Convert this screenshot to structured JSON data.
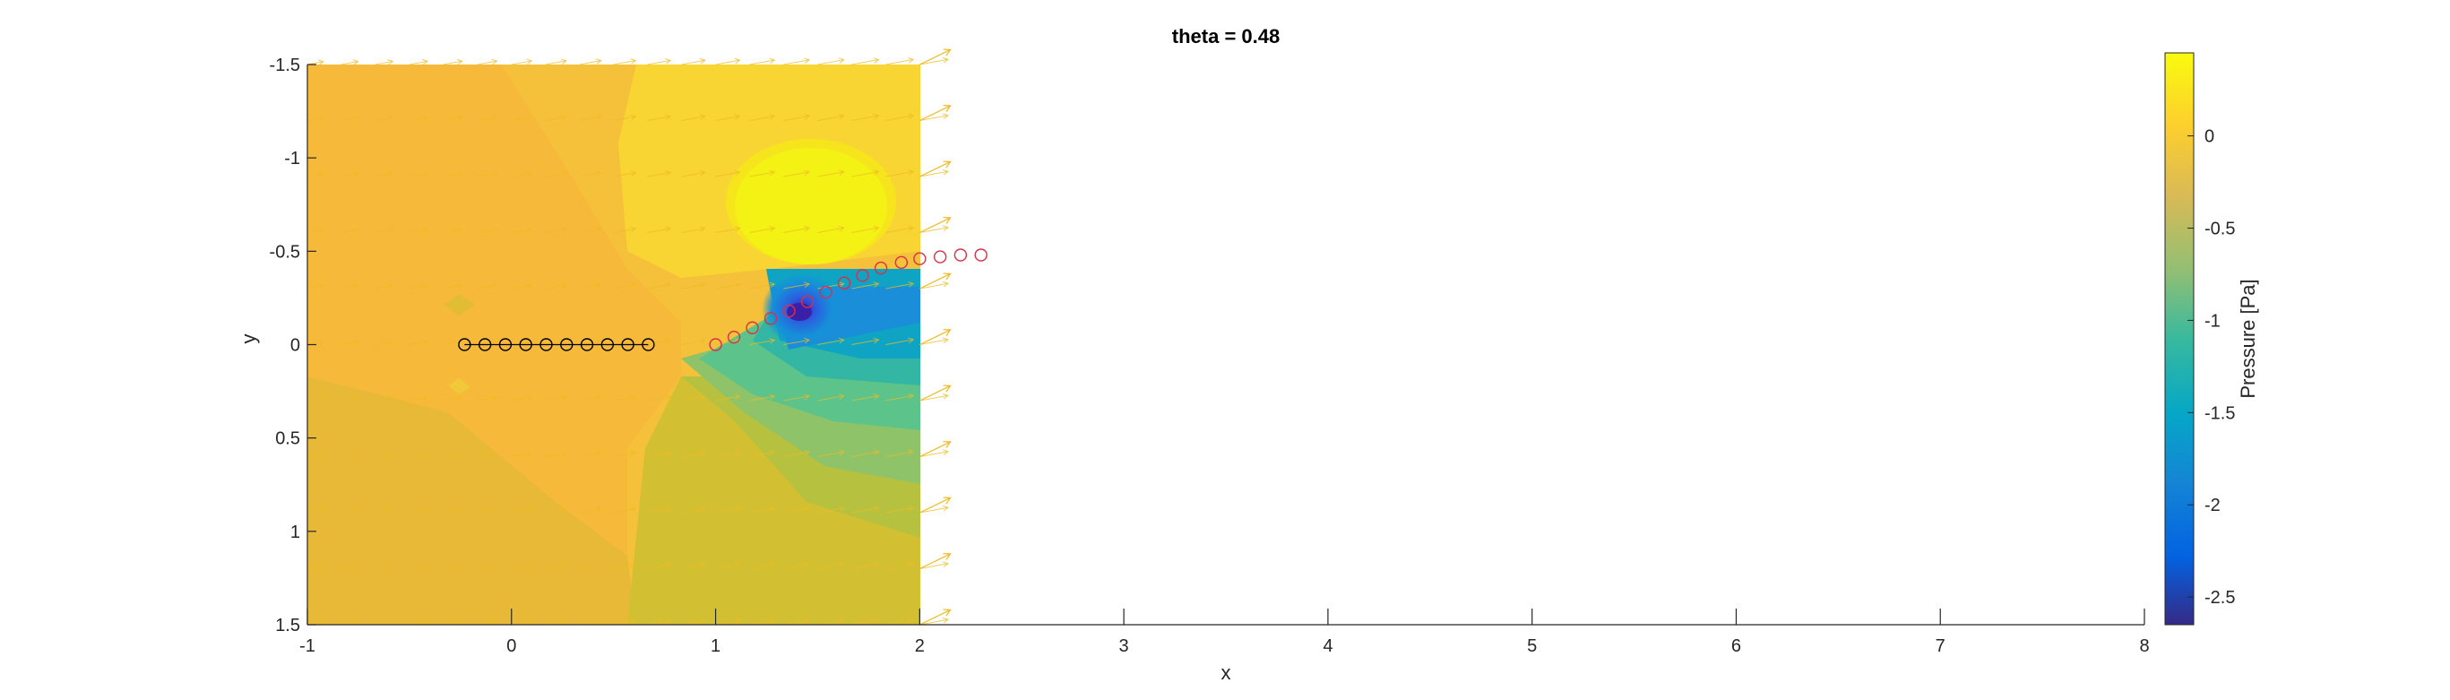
{
  "chart_data": {
    "type": "contour",
    "title": "theta = 0.48",
    "xlabel": "x",
    "ylabel": "y",
    "xlim": [
      -1,
      8
    ],
    "ylim": [
      -1.5,
      1.5
    ],
    "y_axis_reversed": true,
    "x_ticks": [
      -1,
      0,
      1,
      2,
      3,
      4,
      5,
      6,
      7,
      8
    ],
    "y_ticks": [
      -1.5,
      -1,
      -0.5,
      0,
      0.5,
      1,
      1.5
    ],
    "x_tick_labels": [
      "-1",
      "0",
      "1",
      "2",
      "3",
      "4",
      "5",
      "6",
      "7",
      "8"
    ],
    "y_tick_labels": [
      "-1.5",
      "-1",
      "-0.5",
      "0",
      "0.5",
      "1",
      "1.5"
    ],
    "field_extent": {
      "x": [
        -1,
        2
      ],
      "y": [
        -1.5,
        1.5
      ]
    },
    "colorbar": {
      "label": "Pressure [Pa]",
      "range": [
        -2.65,
        0.45
      ],
      "ticks": [
        0,
        -0.5,
        -1,
        -1.5,
        -2,
        -2.5
      ],
      "tick_labels": [
        "0",
        "-0.5",
        "-1",
        "-1.5",
        "-2",
        "-2.5"
      ],
      "colormap": "parula"
    },
    "black_markers": {
      "x": [
        -0.23,
        -0.13,
        -0.03,
        0.07,
        0.17,
        0.27,
        0.37,
        0.47,
        0.57,
        0.67
      ],
      "y": [
        0,
        0,
        0,
        0,
        0,
        0,
        0,
        0,
        0,
        0
      ]
    },
    "red_markers": {
      "x": [
        1.0,
        1.09,
        1.18,
        1.27,
        1.36,
        1.45,
        1.54,
        1.63,
        1.72,
        1.81,
        1.91,
        2.0,
        2.1,
        2.2,
        2.3
      ],
      "y": [
        0,
        -0.04,
        -0.09,
        -0.14,
        -0.18,
        -0.23,
        -0.28,
        -0.33,
        -0.37,
        -0.41,
        -0.44,
        -0.46,
        -0.47,
        -0.48,
        -0.48
      ]
    },
    "colors": {
      "marker_black": "#000000",
      "marker_red": "#d9304a",
      "quiver": "#eebb22",
      "axis": "#262626"
    }
  }
}
